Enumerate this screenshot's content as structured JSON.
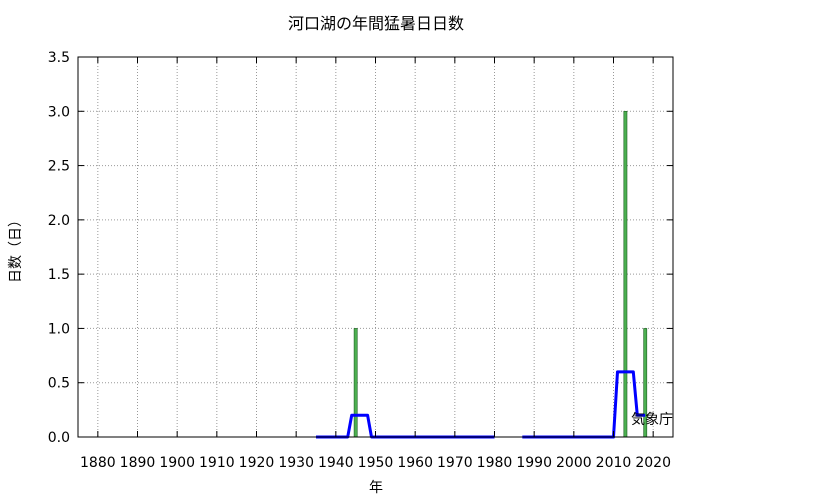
{
  "chart_data": {
    "type": "bar",
    "title": "河口湖の年間猛暑日日数",
    "xlabel": "年",
    "ylabel": "日数（日）",
    "xlim": [
      1875,
      2025
    ],
    "ylim": [
      0,
      3.5
    ],
    "xticks": [
      "1880",
      "1890",
      "1900",
      "1910",
      "1920",
      "1930",
      "1940",
      "1950",
      "1960",
      "1970",
      "1980",
      "1990",
      "2000",
      "2010",
      "2020"
    ],
    "yticks": [
      "0.0",
      "0.5",
      "1.0",
      "1.5",
      "2.0",
      "2.5",
      "3.0",
      "3.5"
    ],
    "grid": true,
    "series": [
      {
        "type": "bar",
        "color": "#4caf50",
        "x": [
          1945,
          2013,
          2018
        ],
        "values": [
          1,
          3,
          1
        ]
      },
      {
        "type": "line",
        "color": "#0000ff",
        "segments": [
          {
            "x": [
              1935,
              1943,
              1944,
              1945,
              1946,
              1947,
              1948,
              1949,
              1980
            ],
            "y": [
              0,
              0,
              0.2,
              0.2,
              0.2,
              0.2,
              0.2,
              0,
              0
            ]
          },
          {
            "x": [
              1987,
              2010,
              2011,
              2012,
              2013,
              2014,
              2015,
              2016,
              2017,
              2018
            ],
            "y": [
              0,
              0,
              0.6,
              0.6,
              0.6,
              0.6,
              0.6,
              0.2,
              0.2,
              0.2
            ]
          }
        ]
      }
    ],
    "annotation": "気象庁"
  }
}
